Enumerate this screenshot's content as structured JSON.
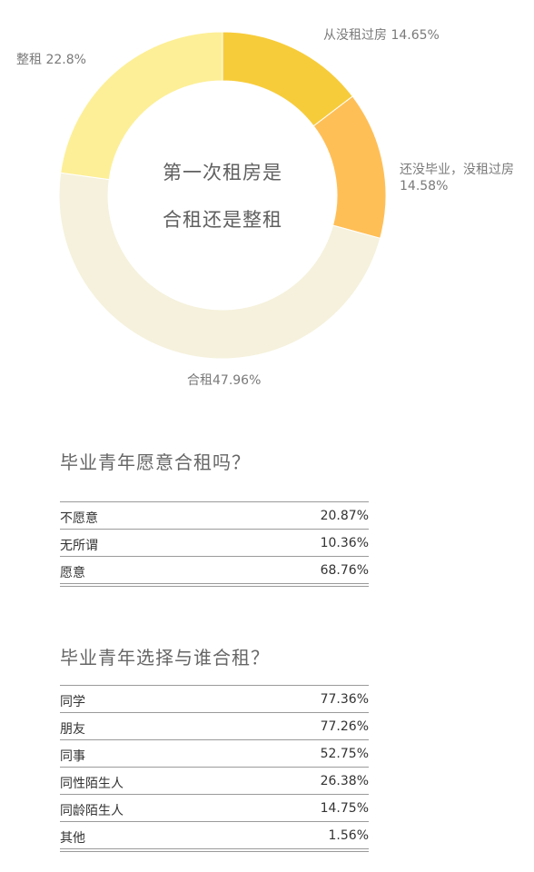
{
  "chart_data": {
    "type": "pie",
    "donut": true,
    "center_title": [
      "第一次租房是",
      "合租还是整租"
    ],
    "slices": [
      {
        "label": "从没租过房 14.65%",
        "value": 14.65,
        "color": "#F7CC3B"
      },
      {
        "label": "还没毕业，没租过房 14.58%",
        "value": 14.58,
        "color": "#FFBF57"
      },
      {
        "label": "合租47.96%",
        "value": 47.96,
        "color": "#F5F1DC"
      },
      {
        "label": "整租 22.8%",
        "value": 22.8,
        "color": "#FDEF97"
      }
    ]
  },
  "section1": {
    "title": "毕业青年愿意合租吗？",
    "rows": [
      {
        "name": "不愿意",
        "value": "20.87%"
      },
      {
        "name": "无所谓",
        "value": "10.36%"
      },
      {
        "name": "愿意",
        "value": "68.76%"
      }
    ]
  },
  "section2": {
    "title": "毕业青年选择与谁合租？",
    "rows": [
      {
        "name": "同学",
        "value": "77.36%"
      },
      {
        "name": "朋友",
        "value": "77.26%"
      },
      {
        "name": "同事",
        "value": "52.75%"
      },
      {
        "name": "同性陌生人",
        "value": "26.38%"
      },
      {
        "name": "同龄陌生人",
        "value": "14.75%"
      },
      {
        "name": "其他",
        "value": "1.56%"
      }
    ]
  }
}
